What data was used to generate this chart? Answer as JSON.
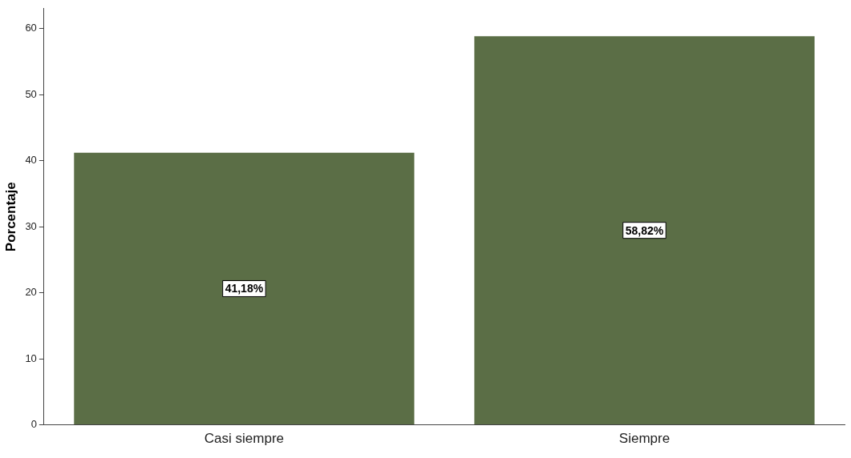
{
  "chart_data": {
    "type": "bar",
    "ylabel": "Porcentaje",
    "categories": [
      "Casi siempre",
      "Siempre"
    ],
    "values": [
      41.18,
      58.82
    ],
    "color": "#5b6e46",
    "value_labels": [
      "41,18%",
      "58,82%"
    ],
    "ylim": [
      0,
      63
    ],
    "yticks": [
      0,
      10,
      20,
      30,
      40,
      50,
      60
    ],
    "grid": false,
    "legend": false
  }
}
